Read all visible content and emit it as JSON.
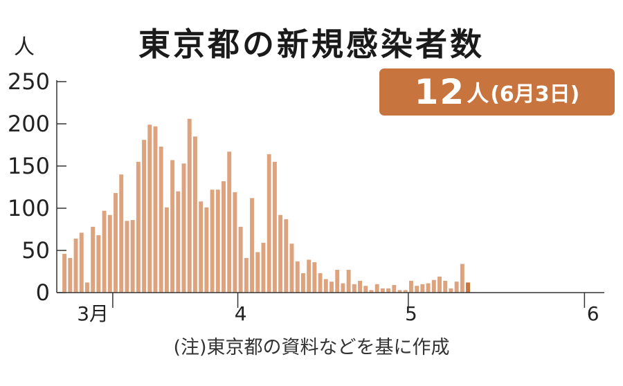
{
  "chart_data": {
    "type": "bar",
    "title": "東京都の新規感染者数",
    "ylabel": "人",
    "ylim": [
      0,
      250
    ],
    "yticks": [
      0,
      50,
      100,
      150,
      200,
      250
    ],
    "grid": false,
    "x_start": "2020-03-01",
    "x_end": "2020-06-03",
    "month_labels": [
      {
        "label": "3月",
        "date": "2020-03-06"
      },
      {
        "label": "4",
        "date": "2020-04-01"
      },
      {
        "label": "5",
        "date": "2020-05-01"
      },
      {
        "label": "6",
        "date": "2020-06-02"
      }
    ],
    "month_boundaries": [
      "2020-03-10",
      "2020-04-01",
      "2020-05-01",
      "2020-06-01"
    ],
    "values": [
      46,
      41,
      64,
      71,
      12,
      78,
      68,
      97,
      92,
      118,
      140,
      85,
      86,
      155,
      181,
      199,
      197,
      173,
      101,
      157,
      120,
      153,
      206,
      185,
      108,
      101,
      122,
      122,
      132,
      167,
      119,
      78,
      41,
      112,
      48,
      59,
      164,
      155,
      92,
      87,
      58,
      37,
      23,
      39,
      36,
      23,
      16,
      13,
      27,
      11,
      27,
      10,
      14,
      8,
      3,
      10,
      5,
      5,
      9,
      3,
      3,
      14,
      8,
      10,
      11,
      15,
      19,
      14,
      5,
      13,
      34,
      12
    ],
    "highlight_color": "#c8743e",
    "bar_color": "#dca37e"
  },
  "highlight": {
    "value": "12",
    "unit": "人",
    "date": "(6月3日)"
  },
  "note": "(注)東京都の資料などを基に作成"
}
